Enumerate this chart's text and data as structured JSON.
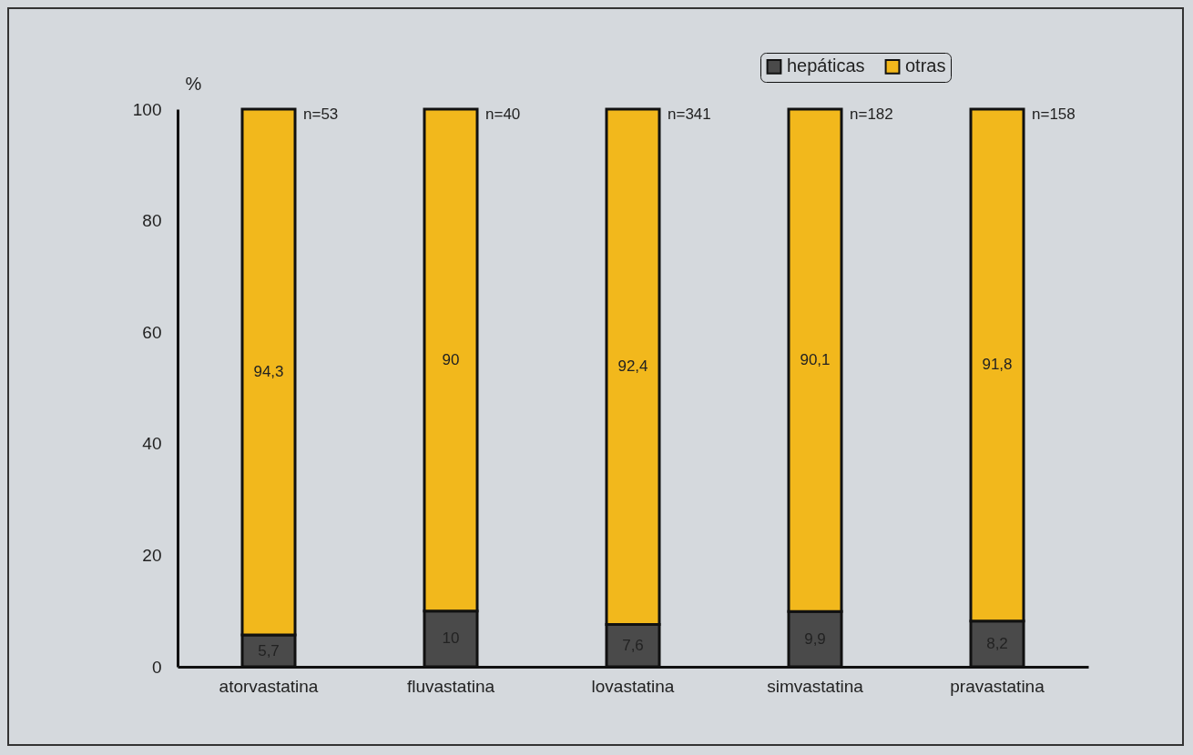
{
  "chart_data": {
    "type": "bar",
    "stacked": true,
    "ylabel": "%",
    "categories": [
      "atorvastatina",
      "fluvastatina",
      "lovastatina",
      "simvastatina",
      "pravastatina"
    ],
    "series": [
      {
        "name": "hepáticas",
        "color": "#4a4a4a",
        "values": [
          5.7,
          10,
          7.6,
          9.9,
          8.2
        ],
        "value_labels": [
          "5,7",
          "10",
          "7,6",
          "9,9",
          "8,2"
        ]
      },
      {
        "name": "otras",
        "color": "#f2b81c",
        "values": [
          94.3,
          90,
          92.4,
          90.1,
          91.8
        ],
        "value_labels": [
          "94,3",
          "90",
          "92,4",
          "90,1",
          "91,8"
        ]
      }
    ],
    "ylim": [
      0,
      100
    ],
    "yticks": [
      0,
      20,
      40,
      60,
      80,
      100
    ],
    "grid": false,
    "legend": "top right",
    "annotations": [
      {
        "text": "n=53",
        "x": "atorvastatina",
        "y": 100
      },
      {
        "text": "n=40",
        "x": "fluvastatina",
        "y": 100
      },
      {
        "text": "n=341",
        "x": "lovastatina",
        "y": 100
      },
      {
        "text": "n=182",
        "x": "simvastatina",
        "y": 100
      },
      {
        "text": "n=158",
        "x": "pravastatina",
        "y": 100
      }
    ]
  }
}
